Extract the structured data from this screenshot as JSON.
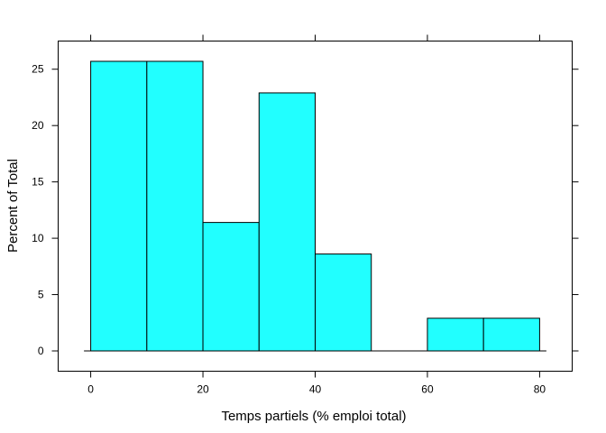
{
  "chart_data": {
    "type": "bar",
    "subtype": "histogram",
    "xlabel": "Temps partiels (% emploi total)",
    "ylabel": "Percent of Total",
    "bins": [
      {
        "x0": 0,
        "x1": 10,
        "value": 25.7
      },
      {
        "x0": 10,
        "x1": 20,
        "value": 25.7
      },
      {
        "x0": 20,
        "x1": 30,
        "value": 11.4
      },
      {
        "x0": 30,
        "x1": 40,
        "value": 22.9
      },
      {
        "x0": 40,
        "x1": 50,
        "value": 8.6
      },
      {
        "x0": 50,
        "x1": 60,
        "value": 0
      },
      {
        "x0": 60,
        "x1": 70,
        "value": 2.9
      },
      {
        "x0": 70,
        "x1": 80,
        "value": 2.9
      }
    ],
    "xlim": [
      -5.8,
      85.8
    ],
    "ylim": [
      -1.8,
      27.5
    ],
    "xticks": [
      "0",
      "20",
      "40",
      "60",
      "80"
    ],
    "yticks": [
      "0",
      "5",
      "10",
      "15",
      "20",
      "25"
    ],
    "bar_color": "#21ffff",
    "edge_color": "#000000",
    "grid": false,
    "legend": "none"
  }
}
